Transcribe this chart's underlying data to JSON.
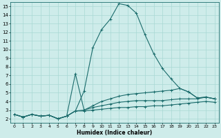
{
  "xlabel": "Humidex (Indice chaleur)",
  "background_color": "#ceecea",
  "grid_color": "#a8d8d4",
  "line_color": "#1a6b6b",
  "xlim": [
    -0.5,
    23.5
  ],
  "ylim": [
    1.5,
    15.5
  ],
  "xticks": [
    0,
    1,
    2,
    3,
    4,
    5,
    6,
    7,
    8,
    9,
    10,
    11,
    12,
    13,
    14,
    15,
    16,
    17,
    18,
    19,
    20,
    21,
    22,
    23
  ],
  "yticks": [
    2,
    3,
    4,
    5,
    6,
    7,
    8,
    9,
    10,
    11,
    12,
    13,
    14,
    15
  ],
  "lines": [
    {
      "x": [
        0,
        1,
        2,
        3,
        4,
        5,
        6,
        7,
        8,
        9,
        10,
        11,
        12,
        13,
        14,
        15,
        16,
        17,
        18,
        19,
        20,
        21,
        22,
        23
      ],
      "y": [
        2.5,
        2.2,
        2.5,
        2.3,
        2.4,
        2.0,
        2.3,
        2.9,
        5.2,
        10.2,
        12.3,
        13.5,
        15.3,
        15.1,
        14.2,
        11.7,
        9.5,
        7.8,
        6.6,
        5.5,
        5.1,
        4.4,
        4.5,
        4.3
      ]
    },
    {
      "x": [
        0,
        1,
        2,
        3,
        4,
        5,
        6,
        7,
        8,
        9,
        10,
        11,
        12,
        13,
        14,
        15,
        16,
        17,
        18,
        19,
        20,
        21,
        22,
        23
      ],
      "y": [
        2.5,
        2.2,
        2.5,
        2.3,
        2.4,
        2.0,
        2.3,
        7.2,
        3.0,
        3.5,
        4.0,
        4.3,
        4.6,
        4.8,
        4.9,
        5.0,
        5.1,
        5.2,
        5.3,
        5.5,
        5.1,
        4.4,
        4.5,
        4.3
      ]
    },
    {
      "x": [
        0,
        1,
        2,
        3,
        4,
        5,
        6,
        7,
        8,
        9,
        10,
        11,
        12,
        13,
        14,
        15,
        16,
        17,
        18,
        19,
        20,
        21,
        22,
        23
      ],
      "y": [
        2.5,
        2.2,
        2.5,
        2.3,
        2.4,
        2.0,
        2.3,
        2.9,
        3.0,
        3.3,
        3.5,
        3.7,
        3.9,
        4.0,
        4.1,
        4.1,
        4.1,
        4.1,
        4.2,
        4.3,
        4.3,
        4.3,
        4.5,
        4.3
      ]
    },
    {
      "x": [
        0,
        1,
        2,
        3,
        4,
        5,
        6,
        7,
        8,
        9,
        10,
        11,
        12,
        13,
        14,
        15,
        16,
        17,
        18,
        19,
        20,
        21,
        22,
        23
      ],
      "y": [
        2.5,
        2.2,
        2.5,
        2.3,
        2.4,
        2.0,
        2.3,
        2.9,
        2.9,
        3.0,
        3.1,
        3.2,
        3.3,
        3.3,
        3.4,
        3.4,
        3.5,
        3.5,
        3.6,
        3.7,
        3.8,
        3.9,
        4.0,
        3.9
      ]
    }
  ]
}
